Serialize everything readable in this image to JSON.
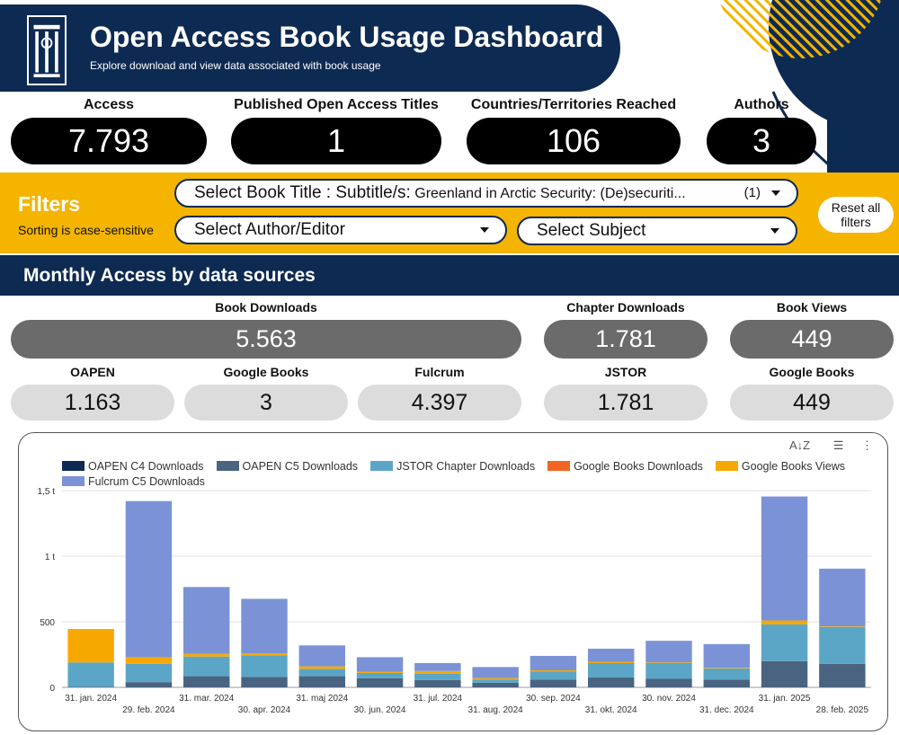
{
  "header": {
    "title": "Open Access Book Usage Dashboard",
    "subtitle": "Explore download and view data associated with book usage"
  },
  "kpis": [
    {
      "label": "Access",
      "value": "7.793"
    },
    {
      "label": "Published Open Access Titles",
      "value": "1"
    },
    {
      "label": "Countries/Territories Reached",
      "value": "106"
    },
    {
      "label": "Authors",
      "value": "3"
    }
  ],
  "filters": {
    "title": "Filters",
    "note": "Sorting is case-sensitive",
    "book_title_label": "Select Book Title : Subtitle/s:",
    "book_title_value": " Greenland in Arctic Security: (De)securiti...",
    "book_title_count": "(1)",
    "author_label": "Select Author/Editor",
    "subject_label": "Select Subject",
    "reset_label": "Reset all filters"
  },
  "section": {
    "title": "Monthly Access by data sources"
  },
  "summary": {
    "book_downloads": {
      "label": "Book Downloads",
      "value": "5.563"
    },
    "chapter_downloads": {
      "label": "Chapter Downloads",
      "value": "1.781"
    },
    "book_views": {
      "label": "Book Views",
      "value": "449"
    }
  },
  "sources": [
    {
      "label": "OAPEN",
      "value": "1.163"
    },
    {
      "label": "Google Books",
      "value": "3"
    },
    {
      "label": "Fulcrum",
      "value": "4.397"
    },
    {
      "label": "JSTOR",
      "value": "1.781"
    },
    {
      "label": "Google Books",
      "value": "449"
    }
  ],
  "colors": {
    "navy": "#0d2a52",
    "gold": "#f4b400",
    "oapen_c4": "#0d2a52",
    "oapen_c5": "#4a6380",
    "jstor": "#5ba6c6",
    "gb_downloads": "#f26522",
    "gb_views": "#f7a800",
    "fulcrum": "#7b93d6"
  },
  "chart_data": {
    "type": "bar",
    "stacked": true,
    "categories": [
      "31. jan. 2024",
      "29. feb. 2024",
      "31. mar. 2024",
      "30. apr. 2024",
      "31. maj 2024",
      "30. jun. 2024",
      "31. jul. 2024",
      "31. aug. 2024",
      "30. sep. 2024",
      "31. okt. 2024",
      "30. nov. 2024",
      "31. dec. 2024",
      "31. jan. 2025",
      "28. feb. 2025"
    ],
    "yticks": [
      "0",
      "500",
      "1 t",
      "1,5 t"
    ],
    "ylim": [
      0,
      1500
    ],
    "legend_position": "top",
    "series": [
      {
        "name": "OAPEN C4 Downloads",
        "color": "#0d2a52",
        "values": [
          0,
          0,
          0,
          0,
          0,
          0,
          0,
          0,
          0,
          0,
          0,
          0,
          0,
          0
        ]
      },
      {
        "name": "OAPEN C5 Downloads",
        "color": "#4a6380",
        "values": [
          5,
          40,
          85,
          80,
          85,
          70,
          55,
          35,
          60,
          75,
          65,
          60,
          200,
          180
        ]
      },
      {
        "name": "JSTOR Chapter Downloads",
        "color": "#5ba6c6",
        "values": [
          185,
          140,
          150,
          165,
          55,
          40,
          50,
          25,
          60,
          110,
          120,
          85,
          280,
          280
        ]
      },
      {
        "name": "Google Books Downloads",
        "color": "#f26522",
        "values": [
          0,
          0,
          0,
          0,
          0,
          0,
          0,
          0,
          0,
          0,
          0,
          0,
          0,
          0
        ]
      },
      {
        "name": "Google Books Views",
        "color": "#f7a800",
        "values": [
          255,
          50,
          20,
          15,
          20,
          10,
          20,
          10,
          10,
          10,
          5,
          5,
          30,
          5
        ]
      },
      {
        "name": "Fulcrum C5 Downloads",
        "color": "#7b93d6",
        "values": [
          0,
          1190,
          510,
          415,
          160,
          110,
          60,
          85,
          110,
          100,
          165,
          180,
          945,
          440
        ]
      }
    ]
  }
}
